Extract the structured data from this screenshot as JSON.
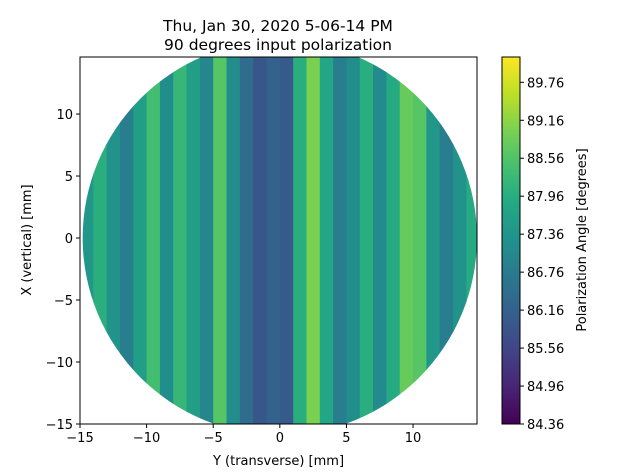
{
  "chart_data": {
    "type": "heatmap",
    "title": "Thu, Jan 30, 2020 5-06-14 PM",
    "subtitle": "90 degrees input polarization",
    "xlabel": "Y (transverse) [mm]",
    "ylabel": "X (vertical) [mm]",
    "xlim": [
      -15,
      14.8
    ],
    "ylim": [
      -15,
      14.6
    ],
    "x_ticks": [
      -15,
      -10,
      -5,
      0,
      5,
      10
    ],
    "x_tick_labels": [
      "−15",
      "−10",
      "−5",
      "0",
      "5",
      "10"
    ],
    "y_ticks": [
      -15,
      -10,
      -5,
      0,
      5,
      10
    ],
    "y_tick_labels": [
      "−15",
      "−10",
      "−5",
      "0",
      "5",
      "10"
    ],
    "colorbar": {
      "label": "Polarization Angle [degrees]",
      "colormap": "viridis",
      "range": [
        84.36,
        90.16
      ],
      "ticks": [
        84.36,
        84.96,
        85.56,
        86.16,
        86.76,
        87.36,
        87.96,
        88.56,
        89.16,
        89.76
      ],
      "tick_labels": [
        "84.36",
        "84.96",
        "85.56",
        "86.16",
        "86.76",
        "87.36",
        "87.96",
        "88.56",
        "89.16",
        "89.76"
      ]
    },
    "region": {
      "shape": "circle",
      "center": [
        0,
        0
      ],
      "radius": 14.8
    },
    "grid": false,
    "column_profile": {
      "y": [
        -15,
        -14,
        -13,
        -12,
        -11,
        -10,
        -9,
        -8,
        -7,
        -6,
        -5,
        -4,
        -3,
        -2,
        -1,
        0,
        1,
        2,
        3,
        4,
        5,
        6,
        7,
        8,
        9,
        10,
        11,
        12,
        13,
        14
      ],
      "angle": [
        87.4,
        88.0,
        87.3,
        86.8,
        87.6,
        88.4,
        87.2,
        88.2,
        87.6,
        87.0,
        88.6,
        87.2,
        86.4,
        85.9,
        86.2,
        86.0,
        88.0,
        89.0,
        87.8,
        86.8,
        87.2,
        88.0,
        87.1,
        87.9,
        88.8,
        88.6,
        87.4,
        86.8,
        87.3,
        87.9
      ]
    }
  }
}
